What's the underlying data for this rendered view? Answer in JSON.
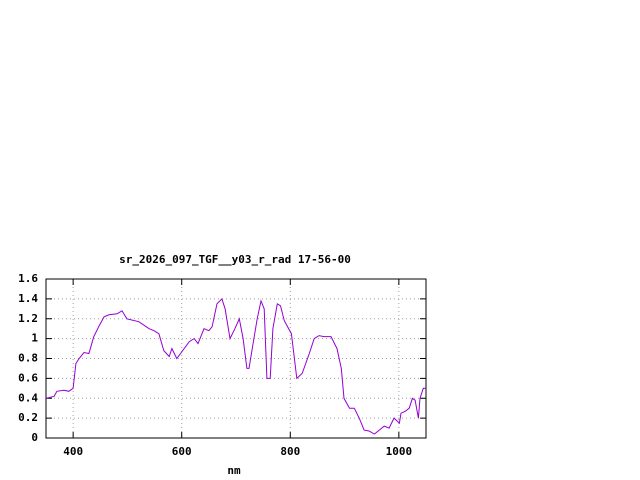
{
  "chart_data": {
    "type": "line",
    "title": "sr_2026_097_TGF__y03_r_rad 17-56-00",
    "x_label": "nm",
    "x": [
      350,
      365,
      370,
      383,
      392,
      400,
      405,
      411,
      420,
      429,
      438,
      448,
      457,
      466,
      481,
      490,
      499,
      521,
      540,
      549,
      558,
      567,
      577,
      582,
      591,
      614,
      623,
      630,
      641,
      650,
      656,
      665,
      674,
      680,
      689,
      698,
      706,
      713,
      720,
      724,
      733,
      739,
      746,
      752,
      757,
      763,
      768,
      776,
      782,
      789,
      802,
      812,
      822,
      835,
      844,
      853,
      862,
      875,
      886,
      894,
      899,
      909,
      918,
      927,
      936,
      945,
      955,
      964,
      973,
      982,
      991,
      1001,
      1004,
      1012,
      1019,
      1025,
      1030,
      1036,
      1039,
      1045,
      1050
    ],
    "series": [
      {
        "name": "sr_2026_097_TGF__y03_r_rad",
        "color": "#9400d3",
        "values": [
          0.4,
          0.42,
          0.47,
          0.48,
          0.47,
          0.5,
          0.75,
          0.8,
          0.86,
          0.85,
          1.02,
          1.13,
          1.22,
          1.24,
          1.25,
          1.28,
          1.2,
          1.17,
          1.1,
          1.08,
          1.05,
          0.88,
          0.82,
          0.9,
          0.8,
          0.97,
          1.0,
          0.95,
          1.1,
          1.08,
          1.12,
          1.35,
          1.4,
          1.3,
          1.0,
          1.1,
          1.2,
          1.0,
          0.7,
          0.7,
          1.0,
          1.2,
          1.38,
          1.3,
          0.6,
          0.6,
          1.1,
          1.35,
          1.33,
          1.18,
          1.05,
          0.6,
          0.65,
          0.85,
          1.0,
          1.03,
          1.02,
          1.02,
          0.9,
          0.7,
          0.4,
          0.3,
          0.3,
          0.2,
          0.08,
          0.07,
          0.04,
          0.08,
          0.12,
          0.1,
          0.2,
          0.15,
          0.25,
          0.27,
          0.3,
          0.4,
          0.38,
          0.2,
          0.4,
          0.5,
          0.5
        ]
      }
    ],
    "xlim": [
      350,
      1050
    ],
    "xticks": [
      400,
      600,
      800,
      1000
    ],
    "ylim": [
      0,
      1.6
    ],
    "yticks": [
      0,
      {
        "value": 0.2,
        "label": "0.2"
      },
      {
        "value": 0.4,
        "label": "0.4"
      },
      {
        "value": 0.6,
        "label": "0.6"
      },
      {
        "value": 0.8,
        "label": "0.8"
      },
      1,
      {
        "value": 1.2,
        "label": "1.2"
      },
      {
        "value": 1.4,
        "label": "1.4"
      },
      {
        "value": 1.6,
        "label": "1.6"
      }
    ],
    "grid": true
  }
}
